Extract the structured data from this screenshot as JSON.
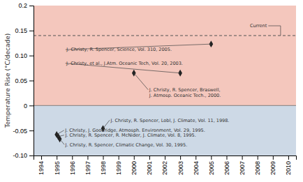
{
  "chart_data": {
    "type": "scatter",
    "ylabel": "Temperature Rise (°C/decade)",
    "x": [
      2005.0,
      2003.0,
      2000.0,
      1998.0,
      1995.0,
      1995.1,
      1995.2
    ],
    "values": [
      0.123,
      0.065,
      0.065,
      -0.046,
      -0.058,
      -0.062,
      -0.067
    ],
    "color": "#222222",
    "marker": "diamond",
    "xlim": [
      1993.5,
      2010.5
    ],
    "ylim": [
      -0.1,
      0.2
    ],
    "xticks": [
      1994,
      1995,
      1996,
      1997,
      1998,
      1999,
      2000,
      2001,
      2002,
      2003,
      2004,
      2005,
      2006,
      2007,
      2008,
      2009,
      2010
    ],
    "yticks": [
      {
        "value": -0.1,
        "label": "-0.10"
      },
      -0.05,
      0,
      0.05,
      {
        "value": 0.1,
        "label": "0.10"
      },
      0.15,
      0.2
    ],
    "reference_line": {
      "value": 0.14,
      "label": "Current",
      "x": 2009.5,
      "line_style": "dashed"
    },
    "annotations": [
      {
        "text": "J. Christy, R. Spencer, Science, Vol. 310, 2005.",
        "x": 2005.0,
        "y": 0.123
      },
      {
        "text": "J. Christy,  et al., J.Atm. Oceanic Tech, Vol. 20, 2003.",
        "x": 2003.0,
        "y": 0.065
      },
      {
        "text": "J. Christy, R. Spencer, Braswell,\nJ. Atmosp. Oceanic Tech., 2000.",
        "x": 2000.0,
        "y": 0.065
      },
      {
        "text": "J. Christy, R. Spencer, Lobl, J. Climate, Vol. 11, 1998.",
        "x": 1998.0,
        "y": -0.046
      },
      {
        "text": "J. Christy, J. Goodridge, Atmosph. Environment, Vol. 29, 1995.",
        "x": 1995.0,
        "y": -0.058
      },
      {
        "text": "J. Christy, R. Spencer, R. McNider, J. Climate, Vol. 8, 1995.",
        "x": 1995.1,
        "y": -0.062
      },
      {
        "text": "J. Christy, R. Spencer, Climatic Change, Vol. 30, 1995.",
        "x": 1995.2,
        "y": -0.067
      }
    ]
  }
}
